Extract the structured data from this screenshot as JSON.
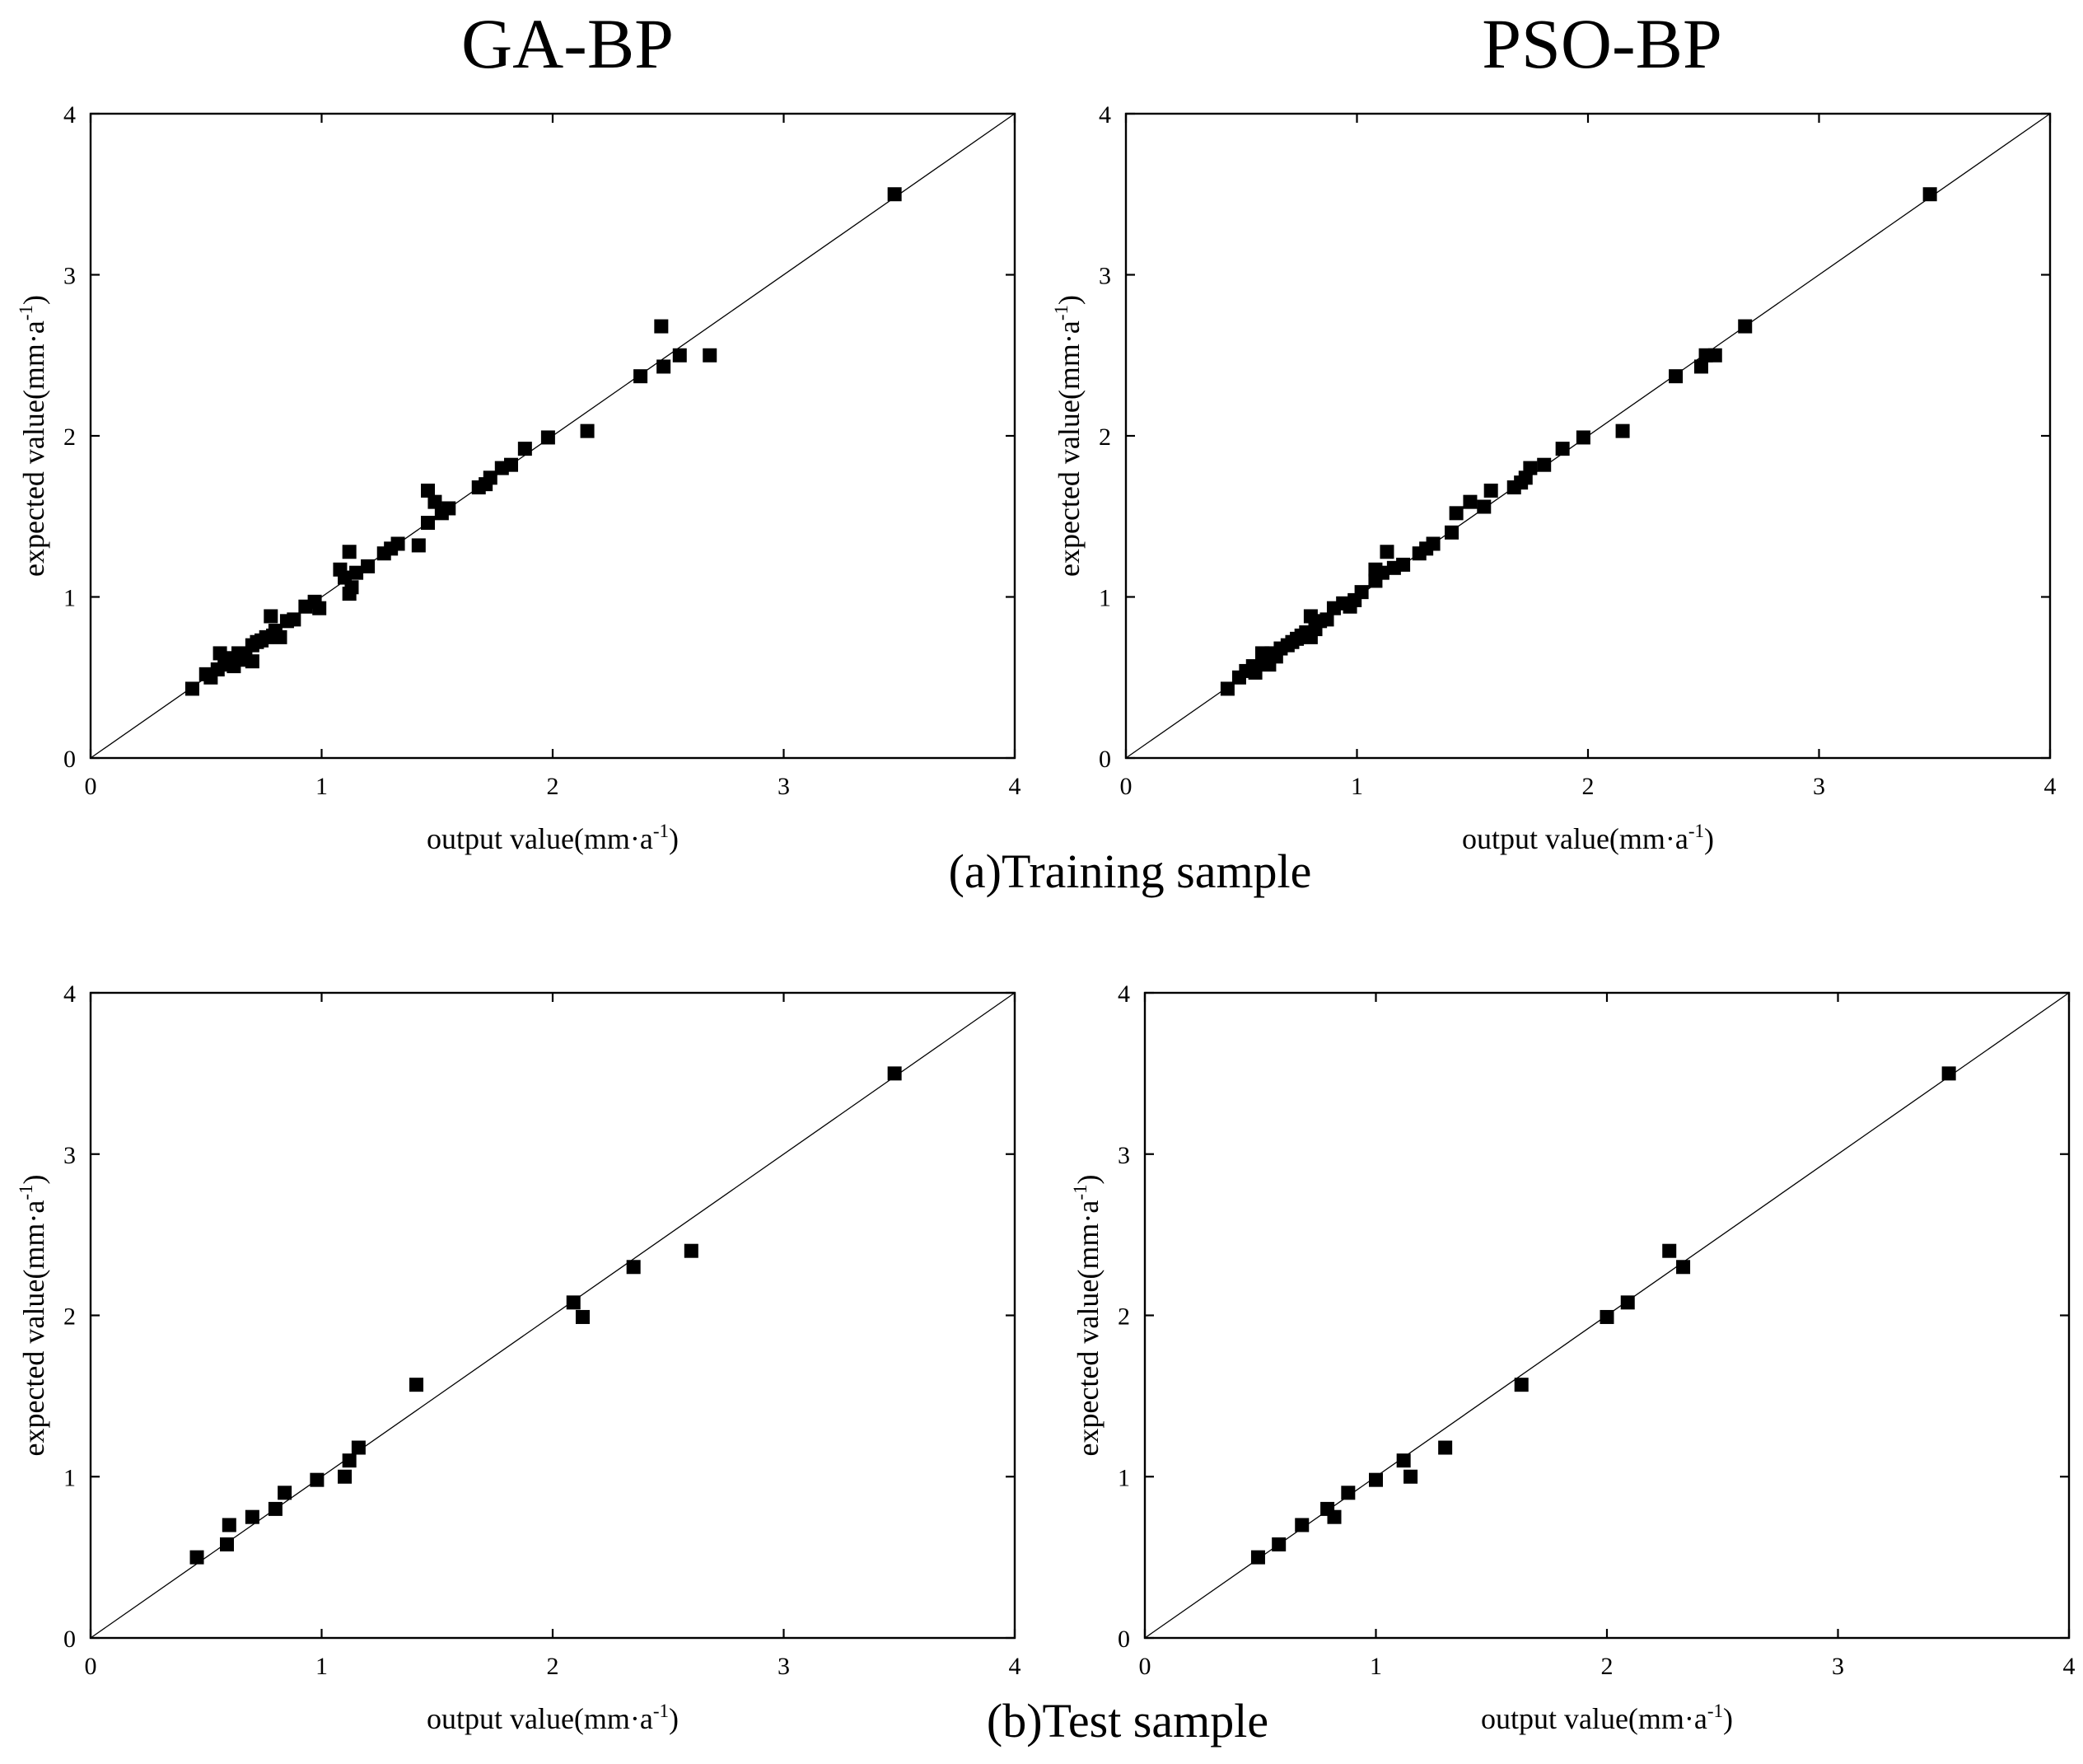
{
  "column_titles": [
    "GA-BP",
    "PSO-BP"
  ],
  "row_captions": [
    "(a)Training sample",
    "(b)Test sample"
  ],
  "chart_data": [
    {
      "type": "scatter",
      "panel": "training-ga-bp",
      "title": "GA-BP",
      "xlabel": "output value(mm·a",
      "ylabel": "expected value(mm·a",
      "unit_superscript": "-1",
      "label_close": ")",
      "xlim": [
        0,
        4
      ],
      "ylim": [
        0,
        4
      ],
      "xticks": [
        "0",
        "1",
        "2",
        "3",
        "4"
      ],
      "yticks": [
        "0",
        "1",
        "2",
        "3",
        "4"
      ],
      "reference_line": "y = x",
      "x": [
        0.44,
        0.5,
        0.52,
        0.55,
        0.56,
        0.58,
        0.6,
        0.62,
        0.64,
        0.65,
        0.67,
        0.7,
        0.7,
        0.72,
        0.74,
        0.76,
        0.78,
        0.79,
        0.8,
        0.82,
        0.85,
        0.88,
        0.93,
        0.97,
        0.99,
        1.08,
        1.1,
        1.12,
        1.12,
        1.13,
        1.15,
        1.2,
        1.27,
        1.3,
        1.33,
        1.42,
        1.46,
        1.46,
        1.49,
        1.52,
        1.55,
        1.68,
        1.71,
        1.73,
        1.78,
        1.82,
        1.88,
        1.98,
        2.15,
        2.38,
        2.47,
        2.48,
        2.55,
        2.68,
        3.48
      ],
      "y": [
        0.43,
        0.52,
        0.5,
        0.55,
        0.65,
        0.58,
        0.62,
        0.57,
        0.65,
        0.61,
        0.64,
        0.6,
        0.7,
        0.72,
        0.73,
        0.75,
        0.88,
        0.76,
        0.79,
        0.75,
        0.85,
        0.86,
        0.94,
        0.97,
        0.93,
        1.17,
        1.12,
        1.02,
        1.28,
        1.06,
        1.15,
        1.19,
        1.27,
        1.3,
        1.33,
        1.32,
        1.46,
        1.66,
        1.59,
        1.52,
        1.55,
        1.68,
        1.7,
        1.74,
        1.8,
        1.82,
        1.92,
        1.99,
        2.03,
        2.37,
        2.68,
        2.43,
        2.5,
        2.5,
        3.5
      ]
    },
    {
      "type": "scatter",
      "panel": "training-pso-bp",
      "title": "PSO-BP",
      "xlabel": "output value(mm·a",
      "ylabel": "expected value(mm·a",
      "unit_superscript": "-1",
      "label_close": ")",
      "xlim": [
        0,
        4
      ],
      "ylim": [
        0,
        4
      ],
      "xticks": [
        "0",
        "1",
        "2",
        "3",
        "4"
      ],
      "yticks": [
        "0",
        "1",
        "2",
        "3",
        "4"
      ],
      "reference_line": "y = x",
      "x": [
        0.44,
        0.49,
        0.52,
        0.55,
        0.56,
        0.59,
        0.6,
        0.62,
        0.63,
        0.65,
        0.67,
        0.7,
        0.72,
        0.74,
        0.76,
        0.78,
        0.8,
        0.8,
        0.82,
        0.84,
        0.87,
        0.9,
        0.94,
        0.97,
        0.99,
        1.02,
        1.08,
        1.08,
        1.11,
        1.13,
        1.16,
        1.2,
        1.27,
        1.3,
        1.33,
        1.41,
        1.43,
        1.49,
        1.55,
        1.58,
        1.68,
        1.71,
        1.73,
        1.75,
        1.81,
        1.89,
        1.98,
        2.15,
        2.38,
        2.49,
        2.51,
        2.55,
        2.68,
        3.48
      ],
      "y": [
        0.43,
        0.5,
        0.54,
        0.57,
        0.53,
        0.65,
        0.61,
        0.58,
        0.65,
        0.63,
        0.68,
        0.7,
        0.72,
        0.74,
        0.76,
        0.78,
        0.88,
        0.75,
        0.8,
        0.85,
        0.86,
        0.93,
        0.96,
        0.94,
        0.98,
        1.03,
        1.1,
        1.17,
        1.15,
        1.28,
        1.18,
        1.2,
        1.27,
        1.3,
        1.33,
        1.4,
        1.52,
        1.59,
        1.56,
        1.66,
        1.68,
        1.71,
        1.74,
        1.8,
        1.82,
        1.92,
        1.99,
        2.03,
        2.37,
        2.43,
        2.5,
        2.5,
        2.68,
        3.5
      ]
    },
    {
      "type": "scatter",
      "panel": "test-ga-bp",
      "title": "",
      "xlabel": "output value(mm·a",
      "ylabel": "expected value(mm·a",
      "unit_superscript": "-1",
      "label_close": ")",
      "xlim": [
        0,
        4
      ],
      "ylim": [
        0,
        4
      ],
      "xticks": [
        "0",
        "1",
        "2",
        "3",
        "4"
      ],
      "yticks": [
        "0",
        "1",
        "2",
        "3",
        "4"
      ],
      "reference_line": "y = x",
      "x": [
        0.46,
        0.59,
        0.6,
        0.7,
        0.8,
        0.84,
        0.98,
        1.1,
        1.12,
        1.16,
        1.41,
        2.09,
        2.13,
        2.35,
        2.6,
        3.48
      ],
      "y": [
        0.5,
        0.58,
        0.7,
        0.75,
        0.8,
        0.9,
        0.98,
        1.0,
        1.1,
        1.18,
        1.57,
        2.08,
        1.99,
        2.3,
        2.4,
        3.5
      ]
    },
    {
      "type": "scatter",
      "panel": "test-pso-bp",
      "title": "",
      "xlabel": "output value(mm·a",
      "ylabel": "expected value(mm·a",
      "unit_superscript": "-1",
      "label_close": ")",
      "xlim": [
        0,
        4
      ],
      "ylim": [
        0,
        4
      ],
      "xticks": [
        "0",
        "1",
        "2",
        "3",
        "4"
      ],
      "yticks": [
        "0",
        "1",
        "2",
        "3",
        "4"
      ],
      "reference_line": "y = x",
      "x": [
        0.49,
        0.58,
        0.68,
        0.79,
        0.82,
        0.88,
        1.0,
        1.12,
        1.15,
        1.3,
        1.63,
        2.0,
        2.09,
        2.27,
        2.33,
        3.48
      ],
      "y": [
        0.5,
        0.58,
        0.7,
        0.8,
        0.75,
        0.9,
        0.98,
        1.1,
        1.0,
        1.18,
        1.57,
        1.99,
        2.08,
        2.4,
        2.3,
        3.5
      ]
    }
  ]
}
